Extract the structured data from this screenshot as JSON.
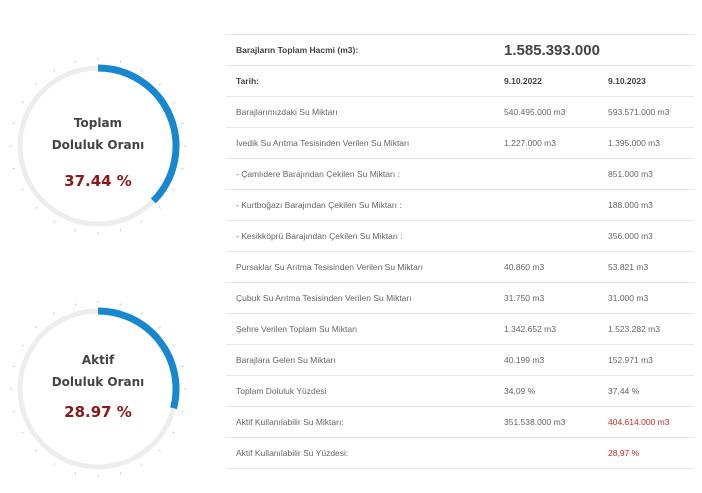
{
  "gauges": {
    "total": {
      "label_line1": "Toplam",
      "label_line2": "Doluluk Oranı",
      "value_text": "37.44 %",
      "percent": 37.44
    },
    "active": {
      "label_line1": "Aktif",
      "label_line2": "Doluluk Oranı",
      "value_text": "28.97 %",
      "percent": 28.97
    }
  },
  "colors": {
    "arc": "#1787cf",
    "track": "#ededed",
    "value": "#8a1a1a",
    "highlight": "#c62828"
  },
  "table": {
    "total_volume": {
      "label": "Barajların Toplam Hacmi (m3):",
      "value": "1.585.393.000"
    },
    "header": {
      "label": "Tarih:",
      "date1": "9.10.2022",
      "date2": "9.10.2023"
    },
    "rows": [
      {
        "label": "Barajlarımızdaki Su Miktarı",
        "v1": "540.495.000 m3",
        "v2": "593.571.000 m3"
      },
      {
        "label": "İvedik Su Arıtma Tesisinden Verilen Su Miktarı",
        "v1": "1.227.000 m3",
        "v2": "1.395.000 m3"
      },
      {
        "label": "- Çamlıdere Barajından Çekilen Su Miktarı :",
        "v1": "",
        "v2": "851.000 m3"
      },
      {
        "label": "- Kurtboğazı Barajından Çekilen Su Miktarı :",
        "v1": "",
        "v2": "188.000 m3"
      },
      {
        "label": "- Kesikköprü Barajından Çekilen Su Miktarı :",
        "v1": "",
        "v2": "356.000 m3"
      },
      {
        "label": "Pursaklar Su Arıtma Tesisinden Verilen Su Miktarı",
        "v1": "40.860 m3",
        "v2": "53.821 m3"
      },
      {
        "label": "Çubuk Su Arıtma Tesisinden Verilen Su Miktarı",
        "v1": "31.750 m3",
        "v2": "31.000 m3"
      },
      {
        "label": "Şehre Verilen Toplam Su Miktarı",
        "v1": "1.342.652 m3",
        "v2": "1.523.282 m3"
      },
      {
        "label": "Barajlara Gelen Su Miktarı",
        "v1": "40.199 m3",
        "v2": "152.971 m3"
      },
      {
        "label": "Toplam Doluluk Yüzdesi",
        "v1": "34,09 %",
        "v2": "37,44 %"
      },
      {
        "label": "Aktif Kullanılabilir Su Miktarı:",
        "v1": "351.538.000 m3",
        "v2": "404.614.000 m3"
      },
      {
        "label": "Aktif Kullanılabilir Su Yüzdesi:",
        "v1": "",
        "v2": "28,97 %"
      }
    ]
  }
}
